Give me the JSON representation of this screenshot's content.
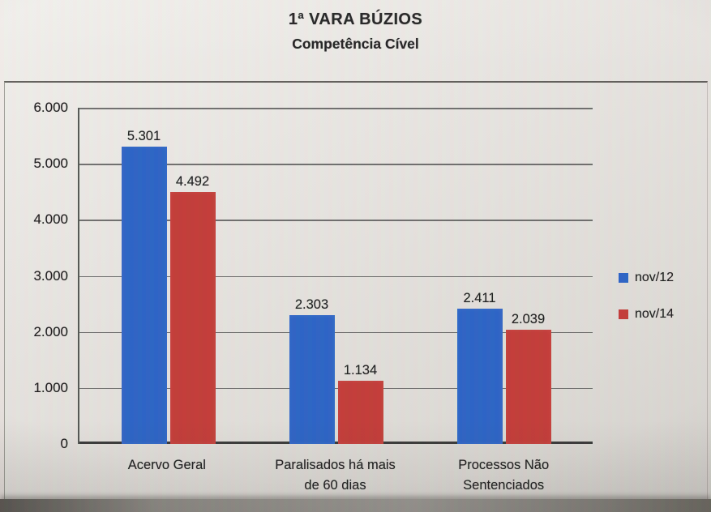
{
  "title": {
    "line1": "1ª VARA BÚZIOS",
    "line2": "Competência Cível"
  },
  "colors": {
    "series_blue": "#2a62c4",
    "series_red": "#c23a36",
    "text": "#1c1c1c"
  },
  "chart_data": {
    "type": "bar",
    "title": "1ª VARA BÚZIOS — Competência Cível",
    "categories": [
      "Acervo Geral",
      "Paralisados há mais\nde 60 dias",
      "Processos Não\nSentenciados"
    ],
    "series": [
      {
        "name": "nov/12",
        "color": "#2a62c4",
        "values": [
          5301,
          2303,
          2411
        ],
        "labels": [
          "5.301",
          "2.303",
          "2.411"
        ]
      },
      {
        "name": "nov/14",
        "color": "#c23a36",
        "values": [
          4492,
          1134,
          2039
        ],
        "labels": [
          "4.492",
          "1.134",
          "2.039"
        ]
      }
    ],
    "xlabel": "",
    "ylabel": "",
    "ylim": [
      0,
      6000
    ],
    "ytick_step": 1000,
    "ytick_labels": [
      "0",
      "1.000",
      "2.000",
      "3.000",
      "4.000",
      "5.000",
      "6.000"
    ],
    "grid": true,
    "legend_position": "right"
  }
}
